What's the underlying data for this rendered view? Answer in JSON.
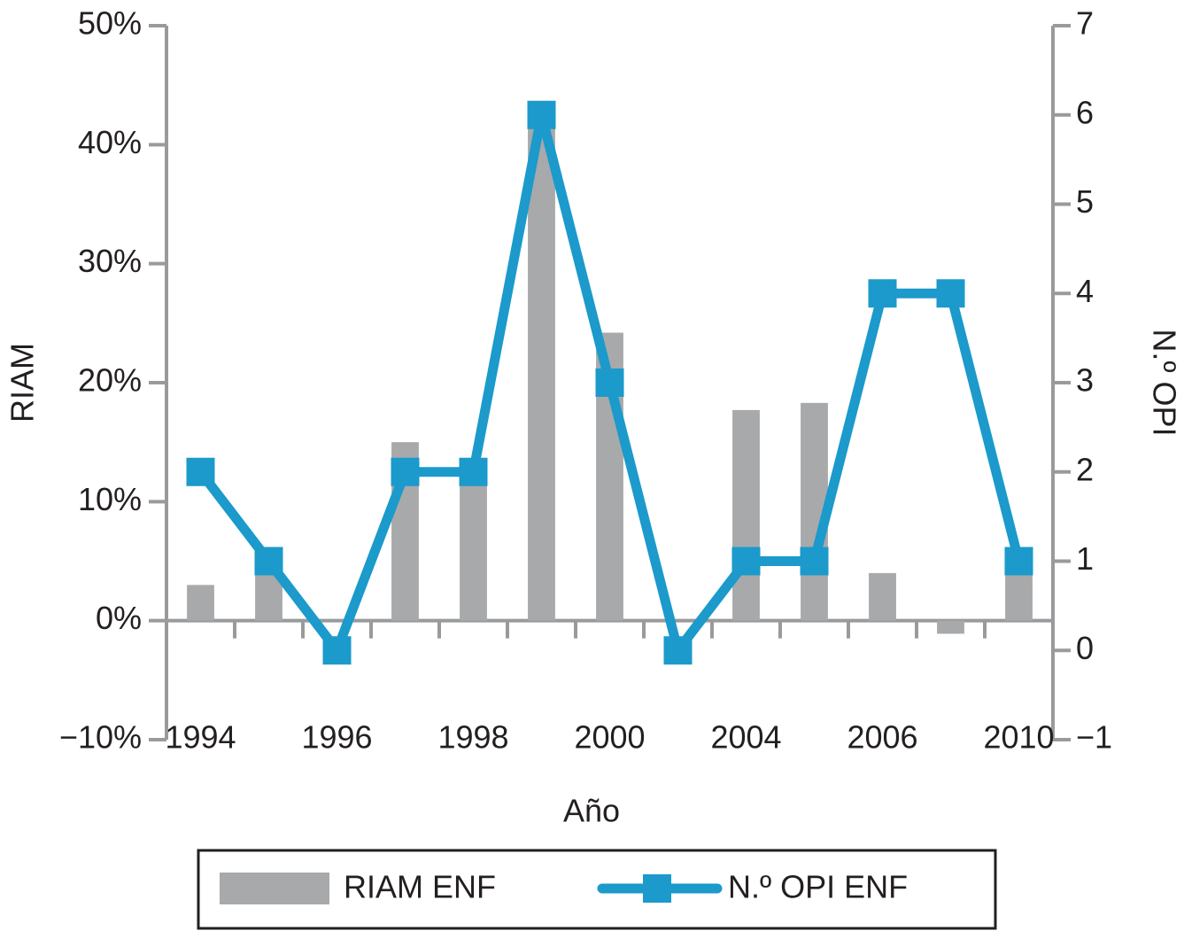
{
  "chart_data": {
    "type": "bar",
    "x_label": "Año",
    "y_label": "RIAM",
    "y2_label": "N.º OPI",
    "categories": [
      "1994",
      null,
      "1996",
      null,
      "1998",
      null,
      "2000",
      null,
      "2004",
      null,
      "2006",
      null,
      "2010"
    ],
    "series": [
      {
        "name": "RIAM ENF",
        "type": "bar",
        "color": "#a7a9ab",
        "values": [
          3,
          4,
          0,
          15,
          12,
          42,
          24.2,
          0,
          17.7,
          18.3,
          4,
          -1.1,
          4
        ]
      },
      {
        "name": "N.º OPI ENF",
        "type": "line",
        "axis": "y2",
        "color": "#1b9acb",
        "values": [
          2,
          1,
          0,
          2,
          2,
          6,
          3,
          0,
          1,
          1,
          4,
          4,
          1
        ]
      }
    ],
    "ylim": [
      -10,
      50
    ],
    "yticks": [
      {
        "value": -10,
        "label": "−10%"
      },
      {
        "value": 0,
        "label": "0%"
      },
      {
        "value": 10,
        "label": "10%"
      },
      {
        "value": 20,
        "label": "20%"
      },
      {
        "value": 30,
        "label": "30%"
      },
      {
        "value": 40,
        "label": "40%"
      },
      {
        "value": 50,
        "label": "50%"
      }
    ],
    "y2lim": [
      -1,
      7
    ],
    "y2ticks": [
      {
        "value": -1,
        "label": "−1"
      },
      0,
      1,
      2,
      3,
      4,
      5,
      6,
      7
    ],
    "grid": false,
    "legend": "bottom"
  }
}
